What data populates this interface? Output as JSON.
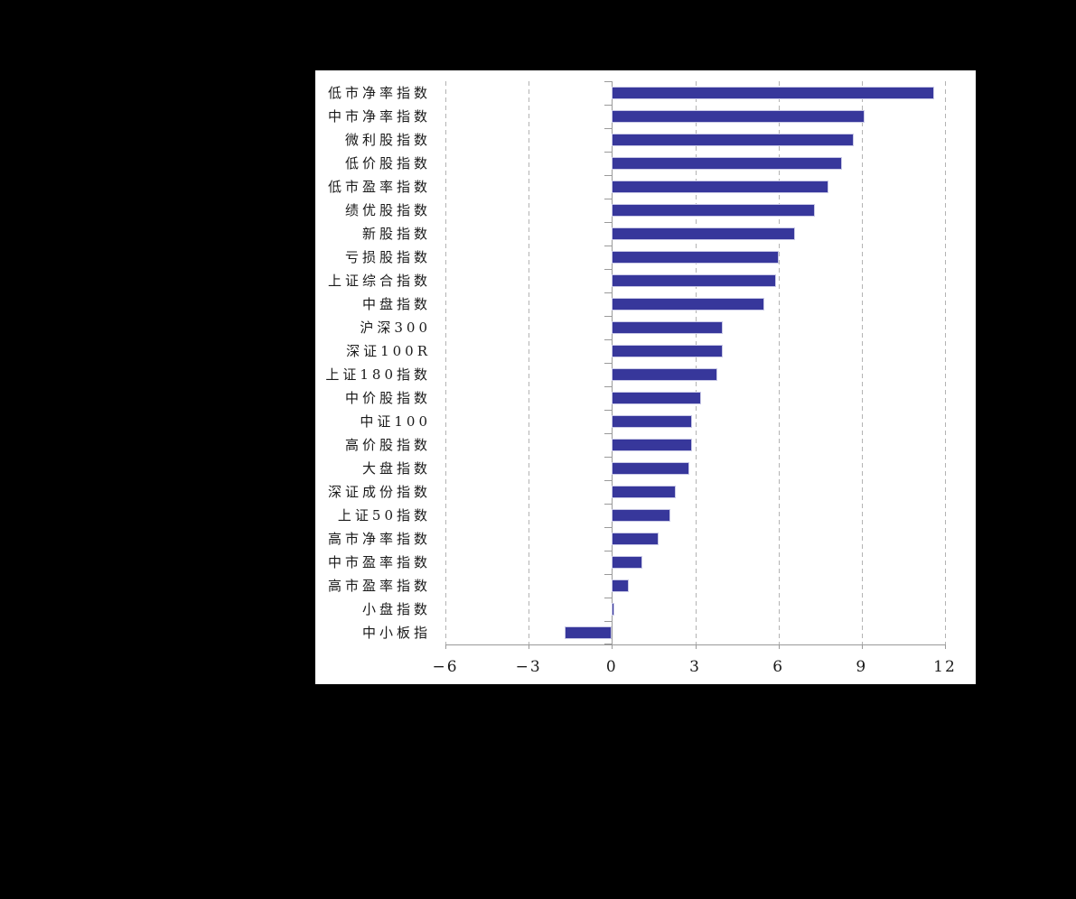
{
  "chart_data": {
    "type": "bar",
    "orientation": "horizontal",
    "title": "",
    "xlabel": "",
    "ylabel": "",
    "categories": [
      "低市净率指数",
      "中市净率指数",
      "微利股指数",
      "低价股指数",
      "低市盈率指数",
      "绩优股指数",
      "新股指数",
      "亏损股指数",
      "上证综合指数",
      "中盘指数",
      "沪深300",
      "深证100R",
      "上证180指数",
      "中价股指数",
      "中证100",
      "高价股指数",
      "大盘指数",
      "深证成份指数",
      "上证50指数",
      "高市净率指数",
      "中市盈率指数",
      "高市盈率指数",
      "小盘指数",
      "中小板指"
    ],
    "values": [
      11.6,
      9.1,
      8.7,
      8.3,
      7.8,
      7.3,
      6.6,
      6.0,
      5.9,
      5.5,
      4.0,
      4.0,
      3.8,
      3.2,
      2.9,
      2.9,
      2.8,
      2.3,
      2.1,
      1.7,
      1.1,
      0.6,
      0.1,
      -1.7
    ],
    "xlim": [
      -6,
      12
    ],
    "xticks": [
      -6,
      -3,
      0,
      3,
      6,
      9,
      12
    ],
    "xtick_labels": [
      "−6",
      "−3",
      "0",
      "3",
      "6",
      "9",
      "12"
    ],
    "grid": "vertical-dashed",
    "legend": "none",
    "colors": {
      "page_background": "#000000",
      "panel_background": "#ffffff",
      "bar_fill": "#37379B",
      "bar_border": "#c9c9e6",
      "gridline": "#b3b3b3",
      "axis": "#9a9a9a",
      "text": "#1a1a1a"
    }
  }
}
